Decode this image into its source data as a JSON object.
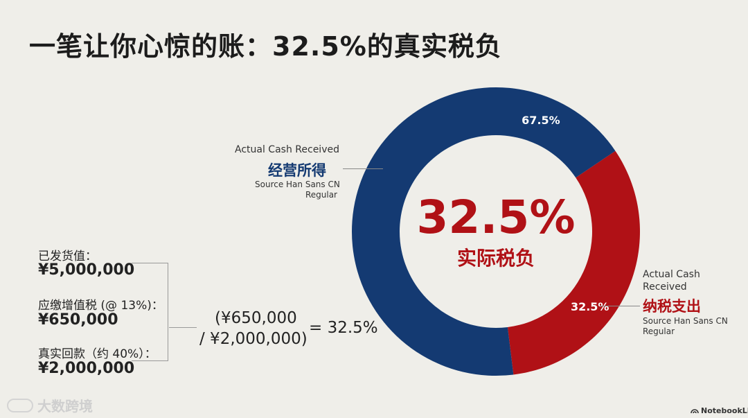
{
  "title": "一笔让你心惊的账：32.5%的真实税负",
  "chart_data": {
    "type": "pie",
    "variant": "donut",
    "slices": [
      {
        "label": "经营所得",
        "value": 67.5,
        "color": "#143a72",
        "value_label": "67.5%"
      },
      {
        "label": "纳税支出",
        "value": 32.5,
        "color": "#b01116",
        "value_label": "32.5%"
      }
    ],
    "center_value": "32.5%",
    "center_label": "实际税负"
  },
  "callouts": {
    "left": {
      "en": "Actual Cash Received",
      "cn": "经营所得",
      "font_note_1": "Source Han Sans CN",
      "font_note_2": "Regular"
    },
    "right": {
      "en_1": "Actual Cash",
      "en_2": "Received",
      "cn": "纳税支出",
      "font_note_1": "Source Han Sans CN",
      "font_note_2": "Regular"
    }
  },
  "calc": {
    "items": [
      {
        "label": "已发货值：",
        "value": "¥5,000,000"
      },
      {
        "label": "应缴增值税 (@ 13%)：",
        "value": "¥650,000"
      },
      {
        "label": "真实回款（约 40%）：",
        "value": "¥2,000,000"
      }
    ],
    "formula_line1": "(¥650,000",
    "formula_line2": "/ ¥2,000,000)",
    "formula_result": "= 32.5%"
  },
  "footer": {
    "brand": "大数跨境",
    "product": "NotebookLM"
  }
}
